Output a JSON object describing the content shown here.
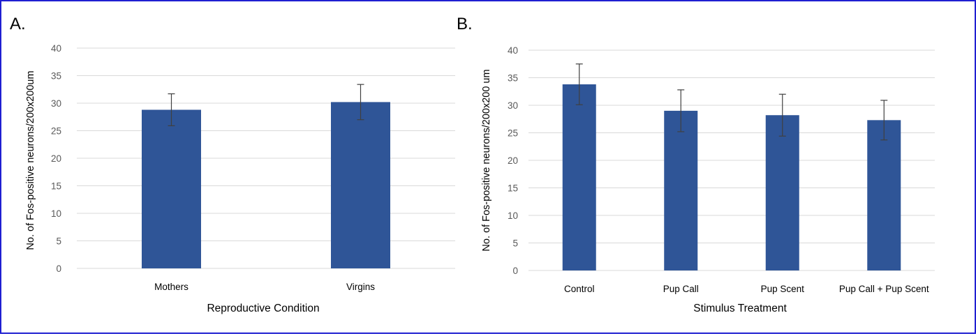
{
  "colors": {
    "bar": "#2f5597",
    "grid": "#d9d9d9",
    "axis_text": "#595959",
    "error_bar": "#404040",
    "border": "#1f1fd1"
  },
  "chart_data": [
    {
      "type": "bar",
      "panel_label": "A.",
      "title": "",
      "xlabel": "Reproductive Condition",
      "ylabel": "No. of Fos-positive neurons/200x200um",
      "categories": [
        "Mothers",
        "Virgins"
      ],
      "values": [
        28.8,
        30.2
      ],
      "error": [
        2.9,
        3.2
      ],
      "ylim": [
        0,
        40
      ],
      "yticks": [
        0,
        5,
        10,
        15,
        20,
        25,
        30,
        35,
        40
      ],
      "grid": true,
      "legend": "none"
    },
    {
      "type": "bar",
      "panel_label": "B.",
      "title": "",
      "xlabel": "Stimulus Treatment",
      "ylabel": "No. of Fos-positive neurons/200x200 um",
      "categories": [
        "Control",
        "Pup Call",
        "Pup Scent",
        "Pup Call + Pup Scent"
      ],
      "values": [
        33.8,
        29.0,
        28.2,
        27.3
      ],
      "error": [
        3.7,
        3.8,
        3.8,
        3.6
      ],
      "ylim": [
        0,
        40
      ],
      "yticks": [
        0,
        5,
        10,
        15,
        20,
        25,
        30,
        35,
        40
      ],
      "grid": true,
      "legend": "none"
    }
  ]
}
